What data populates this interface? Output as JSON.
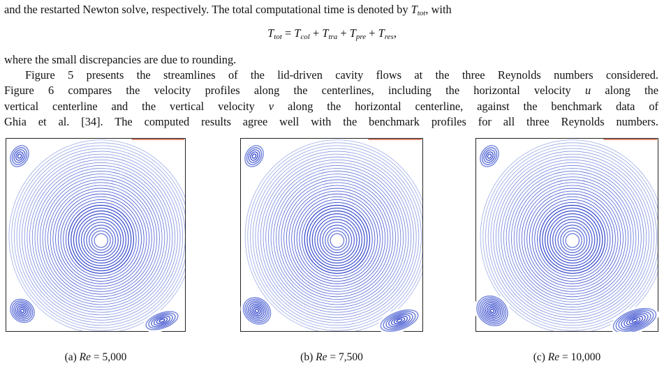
{
  "paragraph_1": {
    "before": "and the restarted Newton solve, respectively. The total computational time is denoted by",
    "symbol": {
      "base": "T",
      "sub": "tot"
    },
    "after": ", with"
  },
  "equation": {
    "lhs": {
      "base": "T",
      "sub": "tot"
    },
    "equals": "=",
    "plus": "+",
    "terms": [
      {
        "base": "T",
        "sub": "col"
      },
      {
        "base": "T",
        "sub": "tra"
      },
      {
        "base": "T",
        "sub": "pre"
      },
      {
        "base": "T",
        "sub": "res"
      }
    ],
    "end": ","
  },
  "paragraph_2": {
    "lines": [
      [
        {
          "text": "where the small discrepancies are due to rounding."
        }
      ],
      [
        {
          "text": "Figure 5 presents the streamlines of the lid-driven cavity flows at the three Reynolds numbers considered."
        }
      ],
      [
        {
          "text": "Figure 6 compares the velocity profiles along the centerlines, including the horizontal velocity"
        },
        {
          "math": "u"
        },
        {
          "text": "along the"
        }
      ],
      [
        {
          "text": "vertical centerline and the vertical velocity"
        },
        {
          "math": "v"
        },
        {
          "text": "along the horizontal centerline, against the benchmark data of"
        }
      ],
      [
        {
          "text": "Ghia et al. [34]. The computed results agree well with the benchmark profiles for all three Reynolds numbers."
        }
      ]
    ]
  },
  "figures": [
    {
      "label": "(a)",
      "variable": "Re",
      "equals": "=",
      "value": "5,000"
    },
    {
      "label": "(b)",
      "variable": "Re",
      "equals": "=",
      "value": "7,500"
    },
    {
      "label": "(c)",
      "variable": "Re",
      "equals": "=",
      "value": "10,000"
    }
  ]
}
